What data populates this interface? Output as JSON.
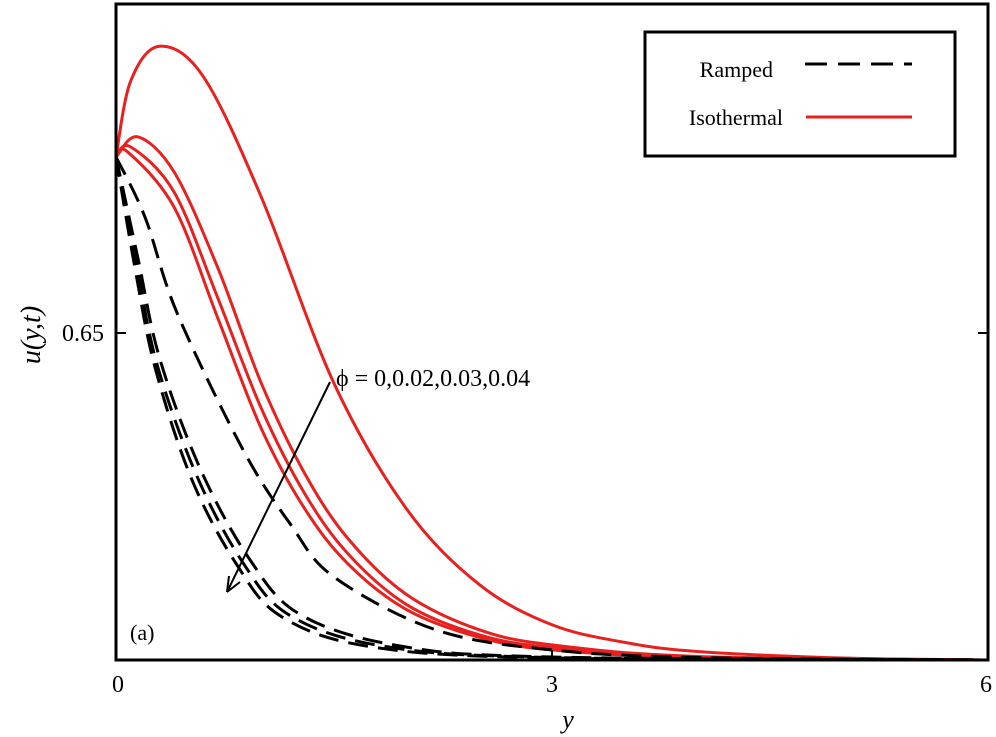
{
  "chart_data": {
    "type": "line",
    "title": "",
    "xlabel": "y",
    "ylabel": "u(y,t)",
    "xlim": [
      0,
      6
    ],
    "ylim": [
      0,
      1.3
    ],
    "xticks": [
      0,
      3,
      6
    ],
    "xtick_labels": [
      "0",
      "3",
      "6"
    ],
    "yticks": [
      0.65
    ],
    "ytick_labels": [
      "0.65"
    ],
    "grid": false,
    "legend_position": "top-right",
    "panel_label": "(a)",
    "annotation": "ϕ = 0,0.02,0.03,0.04",
    "legend": [
      {
        "label": "Ramped",
        "style": "dashed",
        "color": "#000000"
      },
      {
        "label": "Isothermal",
        "style": "solid",
        "color": "#e8211f"
      }
    ],
    "series": [
      {
        "group": "Isothermal",
        "phi": 0,
        "points": [
          [
            0,
            1
          ],
          [
            0.1,
            1.15
          ],
          [
            0.3,
            1.22
          ],
          [
            0.6,
            1.16
          ],
          [
            1.0,
            0.92
          ],
          [
            1.5,
            0.55
          ],
          [
            2.0,
            0.3
          ],
          [
            2.5,
            0.15
          ],
          [
            3.0,
            0.07
          ],
          [
            3.5,
            0.035
          ],
          [
            4,
            0.017
          ],
          [
            5,
            0.004
          ],
          [
            6,
            0.0
          ]
        ]
      },
      {
        "group": "Isothermal",
        "phi": 0.02,
        "points": [
          [
            0,
            1
          ],
          [
            0.15,
            1.04
          ],
          [
            0.4,
            0.97
          ],
          [
            0.7,
            0.78
          ],
          [
            1.0,
            0.55
          ],
          [
            1.3,
            0.37
          ],
          [
            1.6,
            0.24
          ],
          [
            2,
            0.13
          ],
          [
            2.5,
            0.06
          ],
          [
            3,
            0.03
          ],
          [
            4,
            0.007
          ],
          [
            6,
            0.0
          ]
        ]
      },
      {
        "group": "Isothermal",
        "phi": 0.03,
        "points": [
          [
            0,
            1
          ],
          [
            0.1,
            1.02
          ],
          [
            0.4,
            0.93
          ],
          [
            0.7,
            0.72
          ],
          [
            1.0,
            0.5
          ],
          [
            1.3,
            0.33
          ],
          [
            1.6,
            0.21
          ],
          [
            2,
            0.11
          ],
          [
            2.5,
            0.05
          ],
          [
            3,
            0.025
          ],
          [
            4,
            0.006
          ],
          [
            6,
            0.0
          ]
        ]
      },
      {
        "group": "Isothermal",
        "phi": 0.04,
        "points": [
          [
            0,
            1
          ],
          [
            0.08,
            1.01
          ],
          [
            0.4,
            0.9
          ],
          [
            0.7,
            0.68
          ],
          [
            1.0,
            0.46
          ],
          [
            1.3,
            0.3
          ],
          [
            1.6,
            0.19
          ],
          [
            2,
            0.1
          ],
          [
            2.5,
            0.045
          ],
          [
            3,
            0.02
          ],
          [
            4,
            0.005
          ],
          [
            6,
            0.0
          ]
        ]
      },
      {
        "group": "Ramped",
        "phi": 0,
        "points": [
          [
            0,
            1
          ],
          [
            0.2,
            0.88
          ],
          [
            0.42,
            0.69
          ],
          [
            0.87,
            0.42
          ],
          [
            1.2,
            0.27
          ],
          [
            1.5,
            0.165
          ],
          [
            2.2,
            0.06
          ],
          [
            3,
            0.02
          ],
          [
            4,
            0.005
          ],
          [
            6,
            0.0
          ]
        ]
      },
      {
        "group": "Ramped",
        "phi": 0.02,
        "points": [
          [
            0,
            1
          ],
          [
            0.15,
            0.8
          ],
          [
            0.3,
            0.6
          ],
          [
            0.58,
            0.38
          ],
          [
            0.92,
            0.2
          ],
          [
            1.27,
            0.09
          ],
          [
            1.95,
            0.028
          ],
          [
            3,
            0.006
          ],
          [
            6,
            0.0
          ]
        ]
      },
      {
        "group": "Ramped",
        "phi": 0.03,
        "points": [
          [
            0,
            1
          ],
          [
            0.14,
            0.79
          ],
          [
            0.28,
            0.59
          ],
          [
            0.55,
            0.37
          ],
          [
            0.87,
            0.195
          ],
          [
            1.2,
            0.088
          ],
          [
            1.85,
            0.027
          ],
          [
            3,
            0.005
          ],
          [
            6,
            0.0
          ]
        ]
      },
      {
        "group": "Ramped",
        "phi": 0.04,
        "points": [
          [
            0,
            1
          ],
          [
            0.13,
            0.78
          ],
          [
            0.27,
            0.58
          ],
          [
            0.52,
            0.36
          ],
          [
            0.83,
            0.19
          ],
          [
            1.14,
            0.086
          ],
          [
            1.76,
            0.026
          ],
          [
            3,
            0.004
          ],
          [
            6,
            0.0
          ]
        ]
      }
    ]
  }
}
